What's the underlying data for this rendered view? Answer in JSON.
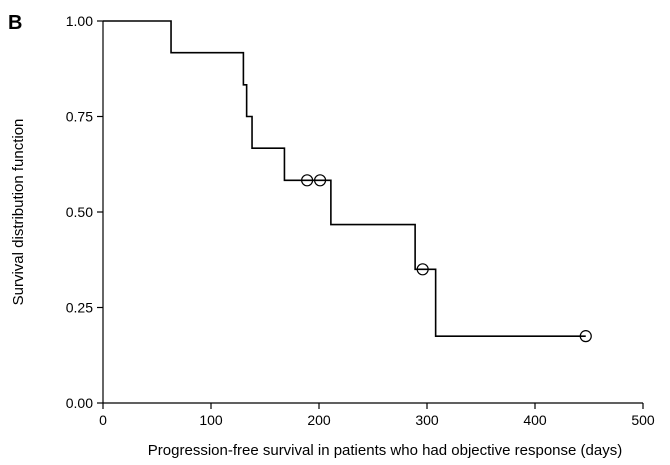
{
  "panel_label": "B",
  "chart_data": {
    "type": "line",
    "subtype": "kaplan-meier-step",
    "title": "",
    "xlabel": "Progression-free survival in patients who had objective response (days)",
    "ylabel": "Survival distribution function",
    "xlim": [
      0,
      500
    ],
    "ylim": [
      0,
      1
    ],
    "x_ticks": [
      0,
      100,
      200,
      300,
      400,
      500
    ],
    "x_tick_labels": [
      "0",
      "100",
      "200",
      "300",
      "400",
      "500"
    ],
    "y_ticks": [
      0,
      0.25,
      0.5,
      0.75,
      1.0
    ],
    "y_tick_labels": [
      "0.00",
      "0.25",
      "0.50",
      "0.75",
      "1.00"
    ],
    "grid": false,
    "series": [
      {
        "step_points": [
          {
            "x": 0,
            "y": 1.0
          },
          {
            "x": 63,
            "y": 0.917
          },
          {
            "x": 130,
            "y": 0.833
          },
          {
            "x": 133,
            "y": 0.75
          },
          {
            "x": 138,
            "y": 0.667
          },
          {
            "x": 168,
            "y": 0.583
          },
          {
            "x": 211,
            "y": 0.467
          },
          {
            "x": 289,
            "y": 0.35
          },
          {
            "x": 308,
            "y": 0.175
          }
        ],
        "end_x": 447,
        "censored": [
          {
            "x": 189,
            "y": 0.583
          },
          {
            "x": 201,
            "y": 0.583
          },
          {
            "x": 296,
            "y": 0.35
          },
          {
            "x": 447,
            "y": 0.175
          }
        ]
      }
    ]
  }
}
